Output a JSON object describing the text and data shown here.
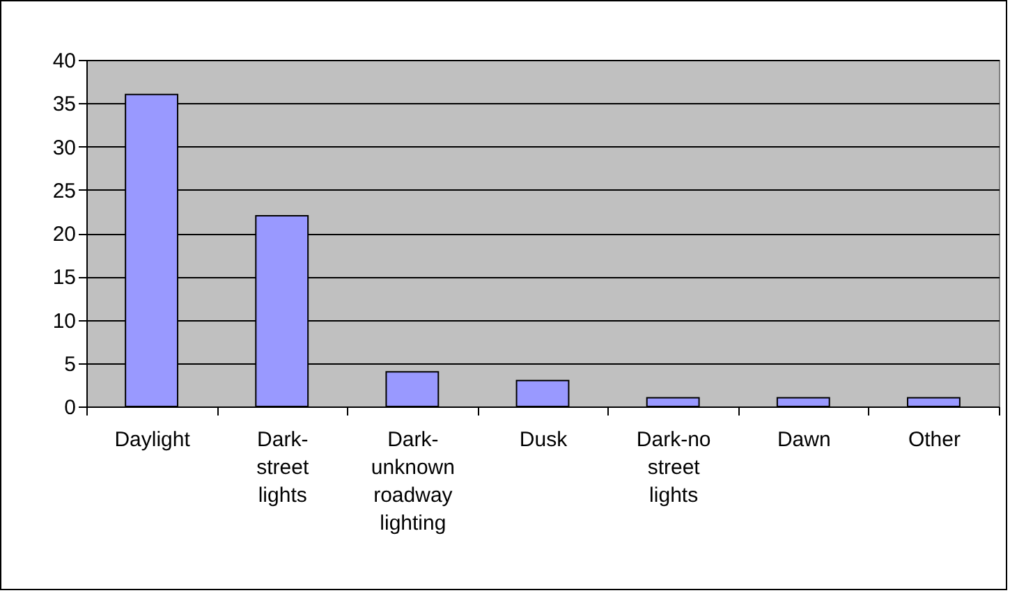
{
  "chart_data": {
    "type": "bar",
    "categories": [
      "Daylight",
      "Dark-street lights",
      "Dark-unknown roadway lighting",
      "Dusk",
      "Dark-no street lights",
      "Dawn",
      "Other"
    ],
    "values": [
      36,
      22,
      4,
      3,
      1,
      1,
      1
    ],
    "color": "#9999ff",
    "ylim": [
      0,
      40
    ],
    "yticks": [
      0,
      5,
      10,
      15,
      20,
      25,
      30,
      35,
      40
    ],
    "grid": "y"
  }
}
